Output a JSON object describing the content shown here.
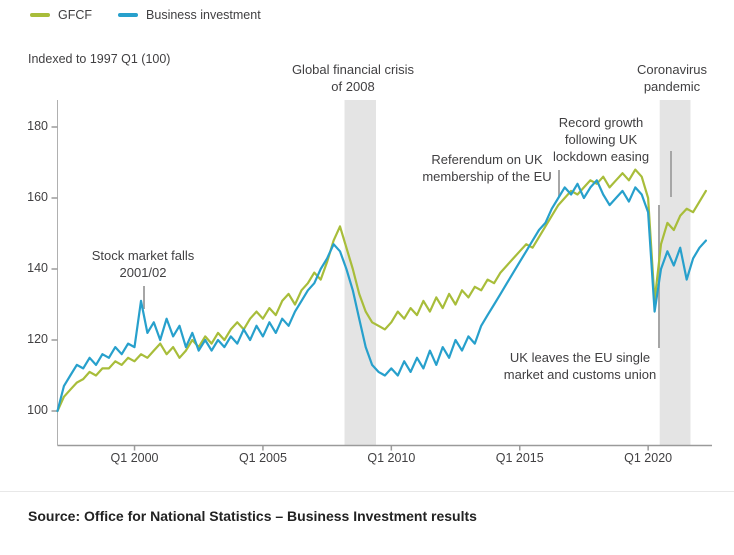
{
  "legend": {
    "items": [
      {
        "label": "GFCF",
        "color": "#a8bd3a"
      },
      {
        "label": "Business investment",
        "color": "#27a0cc"
      }
    ]
  },
  "footer": {
    "source": "Source: Office for National Statistics – Business Investment results"
  },
  "chart_data": {
    "type": "line",
    "subtitle": "Indexed to 1997 Q1 (100)",
    "x_start": "1997 Q1",
    "x_frequency": "quarterly",
    "x_tick_labels": [
      "Q1 2000",
      "Q1 2005",
      "Q1 2010",
      "Q1 2015",
      "Q1 2020"
    ],
    "x_tick_quarter_indices": [
      12,
      32,
      52,
      72,
      92
    ],
    "y_ticks": [
      100,
      120,
      140,
      160,
      180
    ],
    "ylim": [
      100,
      180
    ],
    "grid": false,
    "legend_position": "top-left",
    "series": [
      {
        "name": "GFCF",
        "color": "#a8bd3a",
        "values": [
          100,
          104,
          106,
          108,
          109,
          111,
          110,
          112,
          112,
          114,
          113,
          115,
          114,
          116,
          115,
          117,
          119,
          116,
          118,
          115,
          117,
          120,
          118,
          121,
          119,
          122,
          120,
          123,
          125,
          123,
          126,
          128,
          126,
          129,
          127,
          131,
          133,
          130,
          134,
          136,
          139,
          137,
          142,
          148,
          152,
          146,
          140,
          133,
          128,
          125,
          124,
          123,
          125,
          128,
          126,
          129,
          127,
          131,
          128,
          132,
          129,
          133,
          130,
          134,
          132,
          135,
          134,
          137,
          136,
          139,
          141,
          143,
          145,
          147,
          146,
          149,
          152,
          155,
          158,
          160,
          162,
          161,
          163,
          165,
          164,
          166,
          163,
          165,
          167,
          165,
          168,
          166,
          160,
          131,
          147,
          153,
          151,
          155,
          157,
          156,
          159,
          162
        ]
      },
      {
        "name": "Business investment",
        "color": "#27a0cc",
        "values": [
          100,
          107,
          110,
          113,
          112,
          115,
          113,
          116,
          115,
          118,
          116,
          119,
          118,
          131,
          122,
          125,
          120,
          126,
          121,
          124,
          118,
          122,
          117,
          120,
          117,
          120,
          118,
          121,
          119,
          123,
          120,
          124,
          121,
          125,
          122,
          126,
          124,
          128,
          131,
          134,
          136,
          140,
          143,
          147,
          145,
          140,
          134,
          126,
          118,
          113,
          111,
          110,
          112,
          110,
          114,
          111,
          115,
          112,
          117,
          113,
          118,
          115,
          120,
          117,
          121,
          119,
          124,
          127,
          130,
          133,
          136,
          139,
          142,
          145,
          148,
          151,
          153,
          157,
          160,
          163,
          161,
          164,
          160,
          163,
          165,
          161,
          158,
          160,
          162,
          159,
          163,
          161,
          156,
          128,
          140,
          145,
          141,
          146,
          137,
          143,
          146,
          148
        ]
      }
    ],
    "shaded_bands": [
      {
        "label": "Global financial crisis of 2008",
        "from_quarter_index": 44.7,
        "to_quarter_index": 49.6
      },
      {
        "label": "Coronavirus pandemic",
        "from_quarter_index": 93.8,
        "to_quarter_index": 98.6
      }
    ],
    "annotations": [
      {
        "text": "Stock market falls\n2001/02"
      },
      {
        "text": "Global financial crisis\nof 2008"
      },
      {
        "text": "Referendum on UK\nmembership of the EU"
      },
      {
        "text": "Record growth following UK\nlockdown easing"
      },
      {
        "text": "Coronavirus\npandemic"
      },
      {
        "text": "UK leaves the EU single\nmarket and customs union"
      }
    ]
  }
}
